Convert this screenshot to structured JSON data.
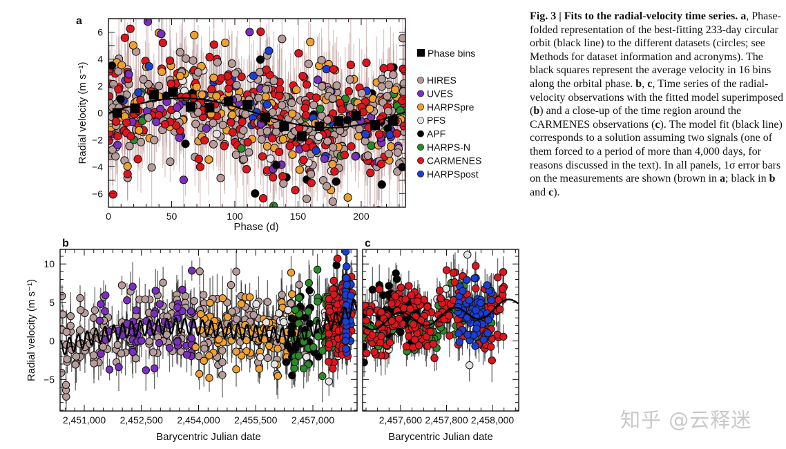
{
  "caption": {
    "segments": [
      {
        "text": "Fig. 3 | Fits to the radial-velocity time series.",
        "bold": true
      },
      {
        "text": " ",
        "bold": false
      },
      {
        "text": "a",
        "bold": true
      },
      {
        "text": ", Phase-folded representation of the best-fitting 233-day circular orbit (black line) to the different datasets (circles; see Methods for dataset information and acronyms). The black squares represent the average velocity in 16 bins along the orbital phase. ",
        "bold": false
      },
      {
        "text": "b",
        "bold": true
      },
      {
        "text": ", ",
        "bold": false
      },
      {
        "text": "c",
        "bold": true
      },
      {
        "text": ", Time series of the radial-velocity observations with the fitted model superimposed (",
        "bold": false
      },
      {
        "text": "b",
        "bold": true
      },
      {
        "text": ") and a close-up of the time region around the CARMENES observations (",
        "bold": false
      },
      {
        "text": "c",
        "bold": true
      },
      {
        "text": "). The model fit (black line) corresponds to a solution assuming two signals (one of them forced to a period of more than 4,000 days, for reasons discussed in the text). In all panels, 1σ error bars on the measurements are shown (brown in ",
        "bold": false
      },
      {
        "text": "a",
        "bold": true
      },
      {
        "text": "; black in ",
        "bold": false
      },
      {
        "text": "b",
        "bold": true
      },
      {
        "text": " and ",
        "bold": false
      },
      {
        "text": "c",
        "bold": true
      },
      {
        "text": ").",
        "bold": false
      }
    ]
  },
  "watermark": "知乎 @云释迷",
  "chart_data": [
    {
      "panel": "a",
      "type": "scatter",
      "xlabel": "Phase (d)",
      "ylabel": "Radial velocity (m s⁻¹)",
      "xlim": [
        0,
        235
      ],
      "ylim": [
        -7,
        7
      ],
      "xticks": [
        0,
        50,
        100,
        150,
        200
      ],
      "xtick_labels": [
        "0",
        "50",
        "100",
        "150",
        "200"
      ],
      "yticks": [
        -6,
        -4,
        -2,
        0,
        2,
        4,
        6
      ],
      "ytick_labels": [
        "−6",
        "−4",
        "−2",
        "0",
        "2",
        "4",
        "6"
      ],
      "model": {
        "period_days": 233,
        "amplitude": 1.1
      },
      "phase_bins": {
        "label": "Phase bins",
        "x": [
          7,
          21,
          36,
          51,
          65,
          80,
          95,
          110,
          124,
          139,
          153,
          167,
          182,
          196,
          211,
          225
        ],
        "y": [
          0.0,
          0.35,
          1.35,
          1.55,
          0.45,
          0.4,
          0.85,
          0.6,
          -0.35,
          -1.0,
          -1.75,
          -1.0,
          -0.6,
          -0.2,
          -0.9,
          -0.6
        ]
      },
      "legend_position": "right"
    },
    {
      "panel": "b",
      "type": "scatter",
      "xlabel": "Barycentric Julian date",
      "ylabel": "Radial velocity (m s⁻¹)",
      "xlim": [
        2450366,
        2458160
      ],
      "ylim": [
        -9.1,
        11.9
      ],
      "xticks": [
        2451000,
        2452500,
        2454000,
        2455500,
        2457000
      ],
      "xtick_labels": [
        "2,451,000",
        "2,452,500",
        "2,454,000",
        "2,455,500",
        "2,457,000"
      ],
      "yticks": [
        -5,
        0,
        5,
        10
      ],
      "ytick_labels": [
        "−5",
        "0",
        "5",
        "10"
      ]
    },
    {
      "panel": "c",
      "type": "scatter",
      "xlabel": "Barycentric Julian date",
      "xlim": [
        2457435,
        2458114
      ],
      "ylim": [
        -9.1,
        11.9
      ],
      "xticks": [
        2457600,
        2457800,
        2458000
      ],
      "xtick_labels": [
        "2,457,600",
        "2,457,800",
        "2,458,000"
      ]
    }
  ],
  "datasets": [
    {
      "name": "HIRES",
      "color": "#b89c9a",
      "count_a": 240,
      "count_b": 230,
      "range": [
        2450400,
        2456800
      ]
    },
    {
      "name": "UVES",
      "color": "#7b2fbe",
      "count_a": 45,
      "count_b": 60,
      "range": [
        2451400,
        2454000
      ]
    },
    {
      "name": "HARPSpre",
      "color": "#f0a030",
      "count_a": 110,
      "count_b": 70,
      "range": [
        2453900,
        2456600
      ]
    },
    {
      "name": "PFS",
      "color": "#e4e4e4",
      "count_a": 20,
      "count_b": 30,
      "range": [
        2455500,
        2457900
      ]
    },
    {
      "name": "APF",
      "color": "#000000",
      "count_a": 25,
      "count_b": 45,
      "range": [
        2456300,
        2457700
      ]
    },
    {
      "name": "HARPS-N",
      "color": "#2a8a2a",
      "count_a": 20,
      "count_b": 50,
      "range": [
        2456500,
        2458000
      ]
    },
    {
      "name": "CARMENES",
      "color": "#e0141e",
      "count_a": 210,
      "count_b": 140,
      "range": [
        2457400,
        2458050
      ]
    },
    {
      "name": "HARPSpost",
      "color": "#1a3fd6",
      "count_a": 30,
      "count_b": 45,
      "range": [
        2457850,
        2458000
      ]
    }
  ],
  "long_term_trend": {
    "bjd": [
      2450366,
      2451200,
      2452300,
      2453500,
      2454500,
      2455500,
      2456500,
      2457450,
      2457800,
      2458160
    ],
    "rv": [
      -1.0,
      0.5,
      1.6,
      2.0,
      1.5,
      1.0,
      0.6,
      2.4,
      3.2,
      4.8
    ]
  },
  "panel_labels": {
    "a": "a",
    "b": "b",
    "c": "c"
  }
}
